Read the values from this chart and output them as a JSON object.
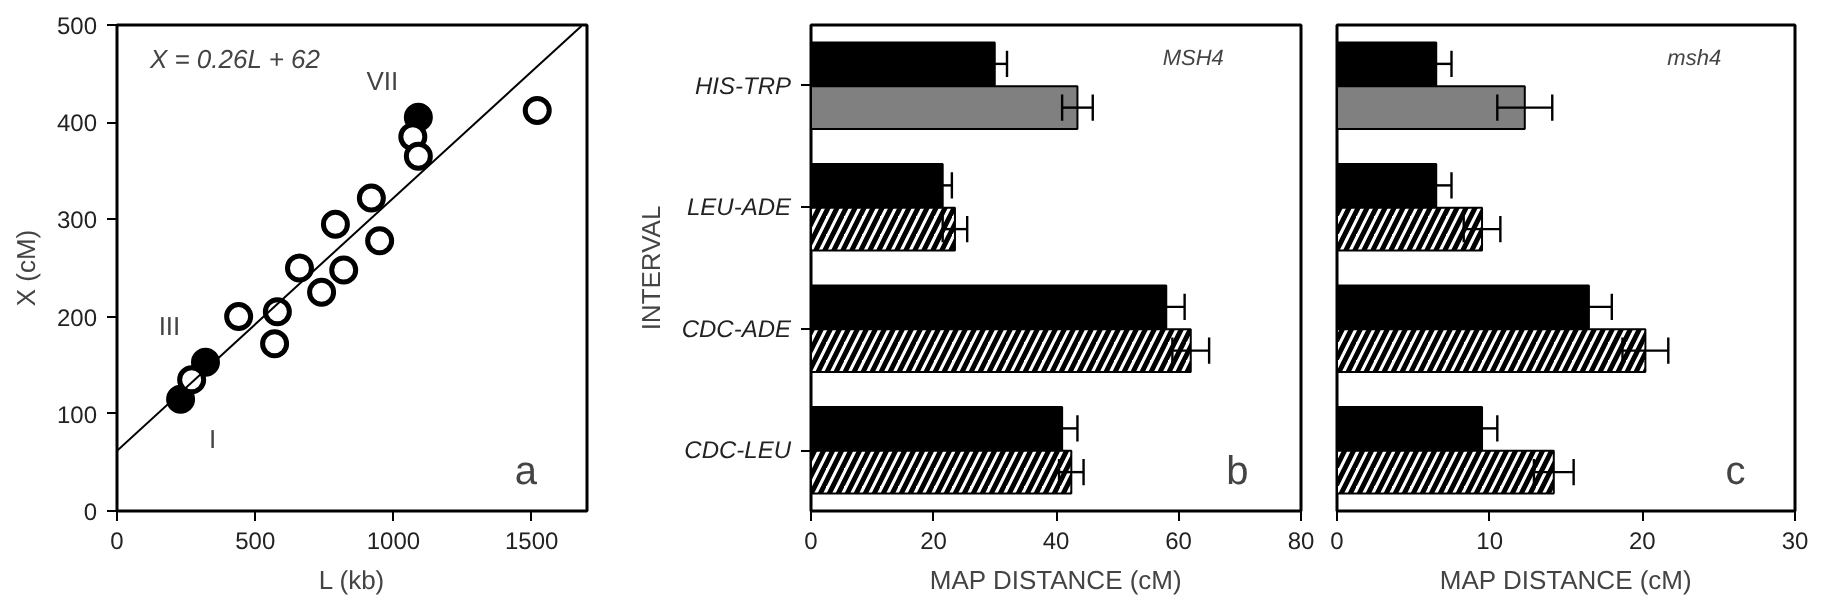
{
  "chart_data": [
    {
      "type": "scatter",
      "xlabel": "L (kb)",
      "ylabel": "X (cM)",
      "xlim": [
        0,
        1700
      ],
      "ylim": [
        0,
        500
      ],
      "xticks": [
        0,
        500,
        1000,
        1500
      ],
      "yticks": [
        0,
        100,
        200,
        300,
        400,
        500
      ],
      "grid": false,
      "series": [
        {
          "color": "#000000",
          "marker": "circle",
          "x": [
            230,
            320,
            1090
          ],
          "values": [
            115,
            153,
            405
          ]
        },
        {
          "color": "#ffffff",
          "marker": "circle",
          "x": [
            270,
            440,
            570,
            580,
            660,
            740,
            790,
            820,
            920,
            950,
            1070,
            1090,
            1520
          ],
          "values": [
            135,
            200,
            172,
            205,
            250,
            225,
            295,
            248,
            322,
            278,
            385,
            365,
            412
          ]
        },
        {
          "type": "line",
          "color": "#000000",
          "x": [
            0,
            1680
          ],
          "values": [
            62,
            499
          ]
        }
      ],
      "annotations": [
        "X = 0.26L + 62",
        "a",
        {
          "text": "I",
          "x": 230,
          "y": 115
        },
        {
          "text": "III",
          "x": 320,
          "y": 153
        },
        {
          "text": "VII",
          "x": 1090,
          "y": 405
        }
      ]
    },
    {
      "type": "bar",
      "orientation": "horizontal",
      "xlabel": "MAP DISTANCE (cM)",
      "ylabel": "INTERVAL",
      "categories": [
        "HIS-TRP",
        "LEU-ADE",
        "CDC-ADE",
        "CDC-LEU"
      ],
      "xlim": [
        0,
        80
      ],
      "xticks": [
        0,
        20,
        40,
        60,
        80
      ],
      "grid": false,
      "series": [
        {
          "color": "#000000",
          "values": [
            30,
            21.5,
            58,
            41
          ],
          "errors": [
            2,
            1.5,
            3,
            2.5
          ]
        },
        {
          "colors": [
            "#808080",
            "#ffffff",
            "#ffffff",
            "#ffffff"
          ],
          "values": [
            43.5,
            23.5,
            62,
            42.5
          ],
          "errors": [
            2.5,
            2,
            3,
            2
          ]
        }
      ],
      "annotations": [
        "MSH4",
        "b"
      ]
    },
    {
      "type": "bar",
      "orientation": "horizontal",
      "xlabel": "MAP DISTANCE (cM)",
      "categories": [
        null,
        null,
        null,
        null
      ],
      "xlim": [
        0,
        30
      ],
      "xticks": [
        0,
        10,
        20,
        30
      ],
      "grid": false,
      "tick_labels": "x",
      "series": [
        {
          "color": "#000000",
          "values": [
            6.5,
            6.5,
            16.5,
            9.5
          ],
          "errors": [
            1,
            1,
            1.5,
            1
          ]
        },
        {
          "colors": [
            "#808080",
            "#ffffff",
            "#ffffff",
            "#ffffff"
          ],
          "values": [
            12.3,
            9.5,
            20.2,
            14.2
          ],
          "errors": [
            1.8,
            1.2,
            1.5,
            1.3
          ]
        }
      ],
      "annotations": [
        "msh4",
        "c"
      ]
    }
  ]
}
